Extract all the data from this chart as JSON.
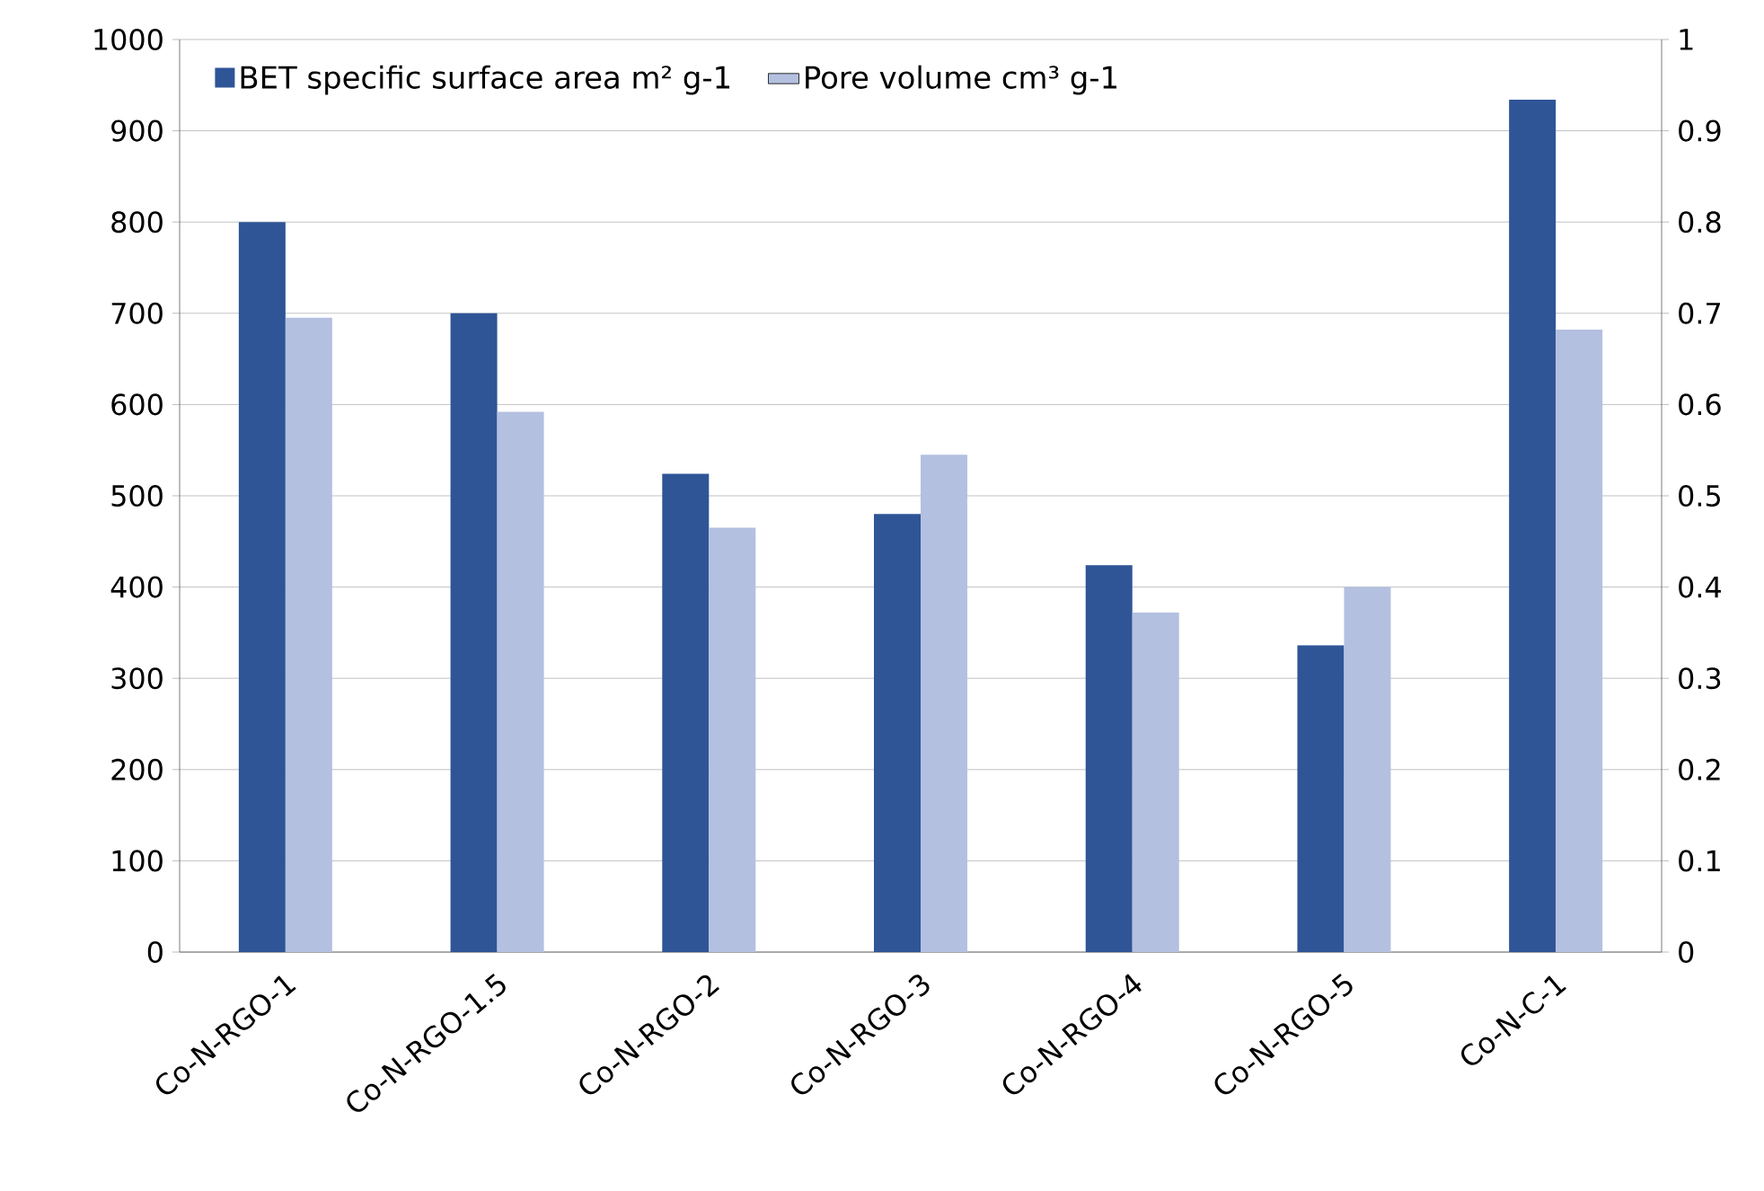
{
  "chart_data": {
    "type": "bar",
    "categories": [
      "Co-N-RGO-1",
      "Co-N-RGO-1.5",
      "Co-N-RGO-2",
      "Co-N-RGO-3",
      "Co-N-RGO-4",
      "Co-N-RGO-5",
      "Co-N-C-1"
    ],
    "series": [
      {
        "name": "BET specific surface area m² g-1",
        "color": "#2f5597",
        "values": [
          800,
          700,
          524,
          480,
          424,
          336,
          934
        ]
      },
      {
        "name": "Pore volume cm³ g-1",
        "color": "#b4c0e0",
        "axis": "y2",
        "values": [
          0.695,
          0.592,
          0.465,
          0.545,
          0.372,
          0.4,
          0.682
        ]
      }
    ],
    "ylim": [
      0,
      1000
    ],
    "yticks": [
      0,
      100,
      200,
      300,
      400,
      500,
      600,
      700,
      800,
      900,
      1000
    ],
    "y2lim": [
      0,
      1
    ],
    "y2ticks": [
      0,
      0.1,
      0.2,
      0.3,
      0.4,
      0.5,
      0.6,
      0.7,
      0.8,
      0.9,
      1
    ],
    "grid": "y",
    "legend": "top left"
  }
}
